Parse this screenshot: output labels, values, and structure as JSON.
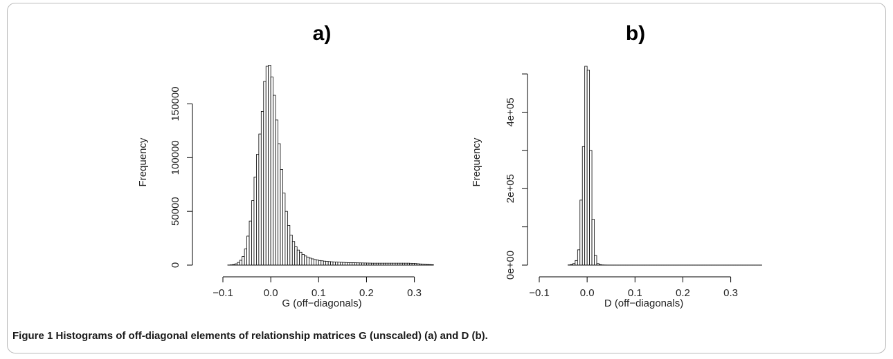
{
  "caption": {
    "label": "Figure 1",
    "text": "Histograms of off-diagonal elements of relationship matrices G (unscaled) (a) and D (b)."
  },
  "chart_data": [
    {
      "type": "bar",
      "title": "a)",
      "xlabel": "G (off−diagonals)",
      "ylabel": "Frequency",
      "xlim": [
        -0.1,
        0.37
      ],
      "ylim": [
        0,
        185000
      ],
      "x_ticks": [
        -0.1,
        0.0,
        0.1,
        0.2,
        0.3
      ],
      "x_tick_labels": [
        "−0.1",
        "0.0",
        "0.1",
        "0.2",
        "0.3"
      ],
      "y_ticks": [
        0,
        50000,
        100000,
        150000
      ],
      "y_tick_labels": [
        "0",
        "50000",
        "100000",
        "150000"
      ],
      "bin_width": 0.005,
      "bin_start": -0.09,
      "values": [
        100,
        250,
        500,
        1200,
        2500,
        4500,
        8000,
        15000,
        27000,
        41000,
        60000,
        82000,
        103000,
        122000,
        143000,
        171000,
        185000,
        186000,
        175000,
        158000,
        135000,
        113000,
        89000,
        67000,
        50000,
        37000,
        28000,
        22000,
        17000,
        14000,
        12000,
        10000,
        8500,
        7500,
        6500,
        5800,
        5200,
        4700,
        4300,
        4000,
        3700,
        3500,
        3300,
        3100,
        2900,
        2800,
        2700,
        2600,
        2500,
        2400,
        2300,
        2250,
        2200,
        2150,
        2100,
        2050,
        2000,
        1950,
        1900,
        1850,
        1800,
        1800,
        1800,
        1800,
        1800,
        1800,
        1800,
        1800,
        1800,
        1800,
        1800,
        1800,
        1800,
        1800,
        1800,
        1800,
        1700,
        1600,
        1500,
        1300,
        1100,
        900,
        750,
        600,
        500,
        400
      ]
    },
    {
      "type": "bar",
      "title": "b)",
      "xlabel": "D (off−diagonals)",
      "ylabel": "Frequency",
      "xlim": [
        -0.1,
        0.37
      ],
      "ylim": [
        0,
        520000
      ],
      "x_ticks": [
        -0.1,
        0.0,
        0.1,
        0.2,
        0.3
      ],
      "x_tick_labels": [
        "−0.1",
        "0.0",
        "0.1",
        "0.2",
        "0.3"
      ],
      "y_ticks": [
        0,
        100000,
        200000,
        300000,
        400000,
        500000
      ],
      "y_tick_labels": [
        "0e+00",
        "",
        "2e+05",
        "",
        "4e+05",
        ""
      ],
      "bin_width": 0.005,
      "bin_start": -0.04,
      "values": [
        500,
        1500,
        4000,
        12000,
        40000,
        170000,
        310000,
        520000,
        510000,
        300000,
        120000,
        25000,
        4000,
        1200,
        500,
        300,
        200,
        150,
        100,
        80,
        60,
        50,
        40,
        30,
        30,
        20,
        20,
        20,
        20,
        20,
        20,
        20,
        20,
        20,
        20,
        20,
        20,
        20,
        20,
        20,
        20,
        20,
        20,
        20,
        20,
        20,
        20,
        20,
        20,
        20,
        20,
        20,
        20,
        20,
        20,
        20,
        20,
        20,
        20,
        20,
        20,
        20,
        20,
        20,
        20,
        20,
        20,
        20,
        20,
        20,
        20,
        20,
        20,
        20,
        20,
        20,
        20,
        20,
        20,
        20,
        20
      ]
    }
  ]
}
